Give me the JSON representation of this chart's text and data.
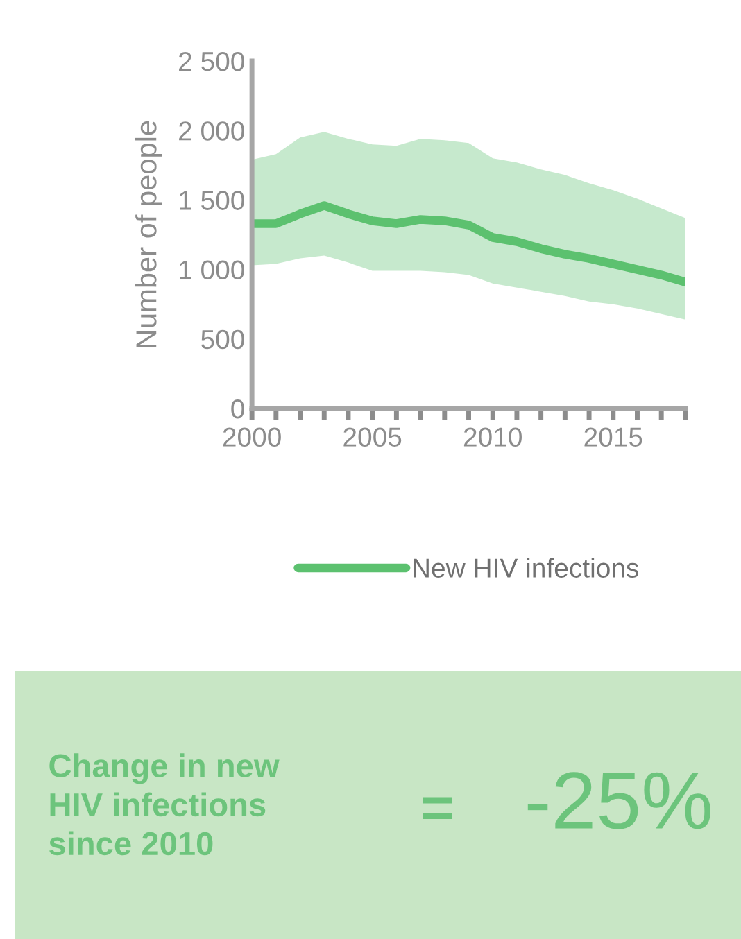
{
  "chart_data": {
    "type": "line",
    "ylabel": "Number of people",
    "x": [
      2000,
      2001,
      2002,
      2003,
      2004,
      2005,
      2006,
      2007,
      2008,
      2009,
      2010,
      2011,
      2012,
      2013,
      2014,
      2015,
      2016,
      2017,
      2018
    ],
    "series": [
      {
        "name": "New HIV infections",
        "color": "#5cc16f",
        "values": [
          1330,
          1330,
          1400,
          1460,
          1400,
          1350,
          1330,
          1360,
          1350,
          1320,
          1230,
          1200,
          1150,
          1110,
          1080,
          1040,
          1000,
          960,
          910
        ],
        "upper": [
          1790,
          1830,
          1950,
          1990,
          1940,
          1900,
          1890,
          1940,
          1930,
          1910,
          1800,
          1770,
          1720,
          1680,
          1620,
          1570,
          1510,
          1440,
          1370
        ],
        "lower": [
          1030,
          1040,
          1080,
          1100,
          1050,
          990,
          990,
          990,
          980,
          960,
          900,
          870,
          840,
          810,
          770,
          750,
          720,
          680,
          640
        ]
      }
    ],
    "xlim": [
      2000,
      2018
    ],
    "xticks": [
      2000,
      {
        "value": 2001,
        "label": null
      },
      {
        "value": 2002,
        "label": null
      },
      {
        "value": 2003,
        "label": null
      },
      {
        "value": 2004,
        "label": null
      },
      2005,
      {
        "value": 2006,
        "label": null
      },
      {
        "value": 2007,
        "label": null
      },
      {
        "value": 2008,
        "label": null
      },
      {
        "value": 2009,
        "label": null
      },
      2010,
      {
        "value": 2011,
        "label": null
      },
      {
        "value": 2012,
        "label": null
      },
      {
        "value": 2013,
        "label": null
      },
      {
        "value": 2014,
        "label": null
      },
      2015,
      {
        "value": 2016,
        "label": null
      },
      {
        "value": 2017,
        "label": null
      },
      {
        "value": 2018,
        "label": null
      }
    ],
    "ylim": [
      0,
      2500
    ],
    "yticks": [
      0,
      500,
      {
        "value": 1000,
        "label": "1 000"
      },
      {
        "value": 1500,
        "label": "1 500"
      },
      {
        "value": 2000,
        "label": "2 000"
      },
      {
        "value": 2500,
        "label": "2 500"
      }
    ],
    "grid": false,
    "legend": "bottom",
    "line_style": "solid",
    "annotations": [
      "Change in new\nHIV infections\nsince 2010",
      "=",
      "-25%"
    ]
  }
}
